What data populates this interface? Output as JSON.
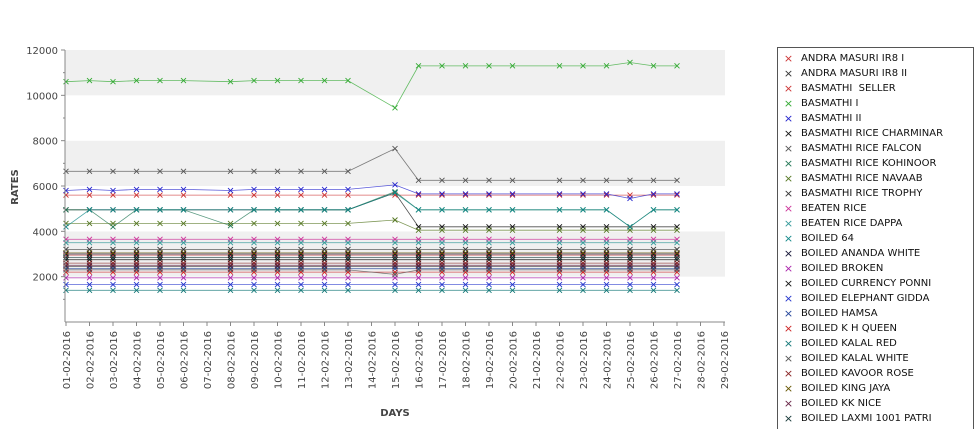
{
  "chart_data": {
    "type": "line",
    "xlabel": "DAYS",
    "ylabel": "RATES",
    "ylim": [
      0,
      12000
    ],
    "yticks": [
      2000,
      4000,
      6000,
      8000,
      10000,
      12000
    ],
    "categories": [
      "01-02-2016",
      "02-02-2016",
      "03-02-2016",
      "04-02-2016",
      "05-02-2016",
      "06-02-2016",
      "07-02-2016",
      "08-02-2016",
      "09-02-2016",
      "10-02-2016",
      "11-02-2016",
      "12-02-2016",
      "13-02-2016",
      "14-02-2016",
      "15-02-2016",
      "16-02-2016",
      "17-02-2016",
      "18-02-2016",
      "19-02-2016",
      "20-02-2016",
      "21-02-2016",
      "22-02-2016",
      "23-02-2016",
      "24-02-2016",
      "25-02-2016",
      "26-02-2016",
      "27-02-2016",
      "28-02-2016",
      "29-02-2016"
    ],
    "grid": true,
    "legend_position": "right",
    "series": [
      {
        "name": "ANDRA MASURI IR8 I",
        "color": "#cc3333",
        "values": [
          2950,
          2950,
          2950,
          2950,
          2950,
          2950,
          null,
          2950,
          2950,
          2950,
          2950,
          2950,
          2950,
          null,
          2950,
          2950,
          2950,
          2950,
          2950,
          2950,
          null,
          2950,
          2950,
          2950,
          2950,
          2950,
          2950,
          null,
          null
        ]
      },
      {
        "name": "ANDRA MASURI IR8 II",
        "color": "#333333",
        "values": [
          2450,
          2450,
          2450,
          2450,
          2450,
          2450,
          null,
          2450,
          2450,
          2450,
          2450,
          2450,
          2450,
          null,
          2450,
          2450,
          2450,
          2450,
          2450,
          2450,
          null,
          2450,
          2450,
          2450,
          2450,
          2450,
          2450,
          null,
          null
        ]
      },
      {
        "name": "BASMATHI  SELLER",
        "color": "#cc3333",
        "values": [
          5600,
          5600,
          5600,
          5600,
          5600,
          5600,
          null,
          5600,
          5600,
          5600,
          5600,
          5600,
          5600,
          null,
          5600,
          5600,
          5600,
          5600,
          5600,
          5600,
          null,
          5600,
          5600,
          5600,
          5600,
          5600,
          5600,
          null,
          null
        ]
      },
      {
        "name": "BASMATHI I",
        "color": "#33aa33",
        "values": [
          10600,
          10650,
          10600,
          10650,
          10650,
          10650,
          null,
          10600,
          10650,
          10650,
          10650,
          10650,
          10650,
          null,
          9450,
          11300,
          11300,
          11300,
          11300,
          11300,
          null,
          11300,
          11300,
          11300,
          11450,
          11300,
          11300,
          null,
          null
        ]
      },
      {
        "name": "BASMATHI II",
        "color": "#2222cc",
        "values": [
          5800,
          5850,
          5800,
          5850,
          5850,
          5850,
          null,
          5800,
          5850,
          5850,
          5850,
          5850,
          5850,
          null,
          6050,
          5650,
          5650,
          5650,
          5650,
          5650,
          null,
          5650,
          5650,
          5650,
          5450,
          5650,
          5650,
          null,
          null
        ]
      },
      {
        "name": "BASMATHI RICE CHARMINAR",
        "color": "#111111",
        "values": [
          4950,
          4950,
          4950,
          4950,
          4950,
          4950,
          null,
          4950,
          4950,
          4950,
          4950,
          4950,
          4950,
          null,
          5700,
          4200,
          4200,
          4200,
          4200,
          4200,
          null,
          4200,
          4200,
          4200,
          4200,
          4200,
          4200,
          null,
          null
        ]
      },
      {
        "name": "BASMATHI RICE FALCON",
        "color": "#555555",
        "values": [
          6650,
          6650,
          6650,
          6650,
          6650,
          6650,
          null,
          6650,
          6650,
          6650,
          6650,
          6650,
          6650,
          null,
          7650,
          6250,
          6250,
          6250,
          6250,
          6250,
          null,
          6250,
          6250,
          6250,
          6250,
          6250,
          6250,
          null,
          null
        ]
      },
      {
        "name": "BASMATHI RICE KOHINOOR",
        "color": "#227755",
        "values": [
          4950,
          4950,
          4200,
          4950,
          4950,
          4950,
          null,
          4250,
          4950,
          4950,
          4950,
          4950,
          4950,
          null,
          5750,
          4950,
          4950,
          4950,
          4950,
          4950,
          null,
          4950,
          4950,
          4950,
          4200,
          4950,
          4950,
          null,
          null
        ]
      },
      {
        "name": "BASMATHI RICE NAVAAB",
        "color": "#557722",
        "values": [
          4350,
          4350,
          4350,
          4350,
          4350,
          4350,
          null,
          4350,
          4350,
          4350,
          4350,
          4350,
          4350,
          null,
          4500,
          4050,
          4050,
          4050,
          4050,
          4050,
          null,
          4050,
          4050,
          4050,
          4050,
          4050,
          4050,
          null,
          null
        ]
      },
      {
        "name": "BASMATHI RICE TROPHY",
        "color": "#333333",
        "values": [
          3200,
          3200,
          3200,
          3200,
          3200,
          3200,
          null,
          3200,
          3200,
          3200,
          3200,
          3200,
          3200,
          null,
          3200,
          3200,
          3200,
          3200,
          3200,
          3200,
          null,
          3200,
          3200,
          3200,
          3200,
          3200,
          3200,
          null,
          null
        ]
      },
      {
        "name": "BEATEN RICE",
        "color": "#cc3399",
        "values": [
          3650,
          3650,
          3650,
          3650,
          3650,
          3650,
          null,
          3650,
          3650,
          3650,
          3650,
          3650,
          3650,
          null,
          3650,
          3650,
          3650,
          3650,
          3650,
          3650,
          null,
          3650,
          3650,
          3650,
          3650,
          3650,
          3650,
          null,
          null
        ]
      },
      {
        "name": "BEATEN RICE DAPPA",
        "color": "#339999",
        "values": [
          3500,
          3500,
          3500,
          3500,
          3500,
          3500,
          null,
          3500,
          3500,
          3500,
          3500,
          3500,
          3500,
          null,
          3500,
          3500,
          3500,
          3500,
          3500,
          3500,
          null,
          3500,
          3500,
          3500,
          3500,
          3500,
          3500,
          null,
          null
        ]
      },
      {
        "name": "BOILED 64",
        "color": "#118888",
        "values": [
          4200,
          4950,
          4950,
          4950,
          4950,
          4950,
          null,
          4950,
          4950,
          4950,
          4950,
          4950,
          4950,
          null,
          5700,
          4950,
          4950,
          4950,
          4950,
          4950,
          null,
          4950,
          4950,
          4950,
          4200,
          4950,
          4950,
          null,
          null
        ]
      },
      {
        "name": "BOILED ANANDA WHITE",
        "color": "#111133",
        "values": [
          3000,
          3000,
          3000,
          3000,
          3000,
          3000,
          null,
          3000,
          3000,
          3000,
          3000,
          3000,
          3000,
          null,
          3000,
          3000,
          3000,
          3000,
          3000,
          3000,
          null,
          3000,
          3000,
          3000,
          3000,
          3000,
          3000,
          null,
          null
        ]
      },
      {
        "name": "BOILED BROKEN",
        "color": "#aa22aa",
        "values": [
          1950,
          1950,
          1950,
          1950,
          1950,
          1950,
          null,
          1950,
          1950,
          1950,
          1950,
          1950,
          1950,
          null,
          1950,
          1950,
          1950,
          1950,
          1950,
          1950,
          null,
          1950,
          1950,
          1950,
          1950,
          1950,
          1950,
          null,
          null
        ]
      },
      {
        "name": "BOILED CURRENCY PONNI",
        "color": "#111111",
        "values": [
          2750,
          2750,
          2750,
          2750,
          2750,
          2750,
          null,
          2750,
          2750,
          2750,
          2750,
          2750,
          2750,
          null,
          2750,
          2750,
          2750,
          2750,
          2750,
          2750,
          null,
          2750,
          2750,
          2750,
          2750,
          2750,
          2750,
          null,
          null
        ]
      },
      {
        "name": "BOILED ELEPHANT GIDDA",
        "color": "#2233cc",
        "values": [
          1650,
          1650,
          1650,
          1650,
          1650,
          1650,
          null,
          1650,
          1650,
          1650,
          1650,
          1650,
          1650,
          null,
          1650,
          1650,
          1650,
          1650,
          1650,
          1650,
          null,
          1650,
          1650,
          1650,
          1650,
          1650,
          1650,
          null,
          null
        ]
      },
      {
        "name": "BOILED HAMSA",
        "color": "#224499",
        "values": [
          2350,
          2350,
          2350,
          2350,
          2350,
          2350,
          null,
          2350,
          2350,
          2350,
          2350,
          2350,
          2350,
          null,
          2350,
          2350,
          2350,
          2350,
          2350,
          2350,
          null,
          2350,
          2350,
          2350,
          2350,
          2350,
          2350,
          null,
          null
        ]
      },
      {
        "name": "BOILED K H QUEEN",
        "color": "#cc2222",
        "values": [
          2200,
          2200,
          2200,
          2200,
          2200,
          2200,
          null,
          2200,
          2200,
          2200,
          2200,
          2200,
          2200,
          null,
          2200,
          2200,
          2200,
          2200,
          2200,
          2200,
          null,
          2200,
          2200,
          2200,
          2200,
          2200,
          2200,
          null,
          null
        ]
      },
      {
        "name": "BOILED KALAL RED",
        "color": "#117777",
        "values": [
          1400,
          1400,
          1400,
          1400,
          1400,
          1400,
          null,
          1400,
          1400,
          1400,
          1400,
          1400,
          1400,
          null,
          1400,
          1400,
          1400,
          1400,
          1400,
          1400,
          null,
          1400,
          1400,
          1400,
          1400,
          1400,
          1400,
          null,
          null
        ]
      },
      {
        "name": "BOILED KALAL WHITE",
        "color": "#555555",
        "values": [
          2300,
          2300,
          2300,
          2300,
          2300,
          2300,
          null,
          2300,
          2300,
          2300,
          2300,
          2300,
          2300,
          null,
          2100,
          2300,
          2300,
          2300,
          2300,
          2300,
          null,
          2300,
          2300,
          2300,
          2300,
          2300,
          2300,
          null,
          null
        ]
      },
      {
        "name": "BOILED KAVOOR ROSE",
        "color": "#882222",
        "values": [
          2600,
          2600,
          2600,
          2600,
          2600,
          2600,
          null,
          2600,
          2600,
          2600,
          2600,
          2600,
          2600,
          null,
          2600,
          2600,
          2600,
          2600,
          2600,
          2600,
          null,
          2600,
          2600,
          2600,
          2600,
          2600,
          2600,
          null,
          null
        ]
      },
      {
        "name": "BOILED KING JAYA",
        "color": "#665500",
        "values": [
          3050,
          3050,
          3050,
          3050,
          3050,
          3050,
          null,
          3050,
          3050,
          3050,
          3050,
          3050,
          3050,
          null,
          3050,
          3050,
          3050,
          3050,
          3050,
          3050,
          null,
          3050,
          3050,
          3050,
          3050,
          3050,
          3050,
          null,
          null
        ]
      },
      {
        "name": "BOILED KK NICE",
        "color": "#662244",
        "values": [
          2500,
          2500,
          2500,
          2500,
          2500,
          2500,
          null,
          2500,
          2500,
          2500,
          2500,
          2500,
          2500,
          null,
          2500,
          2500,
          2500,
          2500,
          2500,
          2500,
          null,
          2500,
          2500,
          2500,
          2500,
          2500,
          2500,
          null,
          null
        ]
      },
      {
        "name": "BOILED LAXMI 1001 PATRI",
        "color": "#113333",
        "values": [
          2850,
          2850,
          2850,
          2850,
          2850,
          2850,
          null,
          2850,
          2850,
          2850,
          2850,
          2850,
          2850,
          null,
          2850,
          2850,
          2850,
          2850,
          2850,
          2850,
          null,
          2850,
          2850,
          2850,
          2850,
          2850,
          2850,
          null,
          null
        ]
      }
    ]
  }
}
